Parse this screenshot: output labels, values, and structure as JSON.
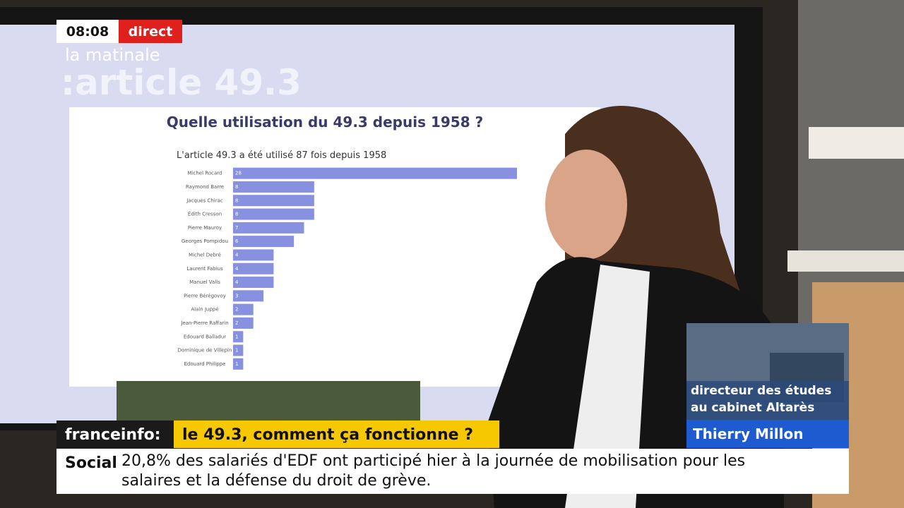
{
  "overlay": {
    "time": "08:08",
    "live": "direct",
    "show": "la matinale",
    "topic": ":article 49.3",
    "channel": "franceinfo:",
    "headline": "le 49.3, comment ça fonctionne ?",
    "guest_role": "directeur des études au cabinet Altarès",
    "guest_name": "Thierry Millon",
    "ticker_label": "Social",
    "ticker_text": "20,8% des salariés d'EDF ont participé hier à la journée de mobilisation pour les salaires et la défense du droit de grève."
  },
  "chart_data": {
    "type": "bar",
    "orientation": "horizontal",
    "title": "Quelle utilisation du 49.3 depuis 1958 ?",
    "subtitle": "L'article 49.3 a été utilisé 87 fois depuis 1958",
    "categories": [
      "Michel Rocard",
      "Raymond Barre",
      "Jacques Chirac",
      "Édith Cresson",
      "Pierre Mauroy",
      "Georges Pompidou",
      "Michel Debré",
      "Laurent Fabius",
      "Manuel Valls",
      "Pierre Bérégovoy",
      "Alain Juppé",
      "Jean-Pierre Raffarin",
      "Edouard Balladur",
      "Dominique de Villepin",
      "Edouard Philippe"
    ],
    "values": [
      28,
      8,
      8,
      8,
      7,
      6,
      4,
      4,
      4,
      3,
      2,
      2,
      1,
      1,
      1
    ],
    "color": "#8890e0"
  }
}
